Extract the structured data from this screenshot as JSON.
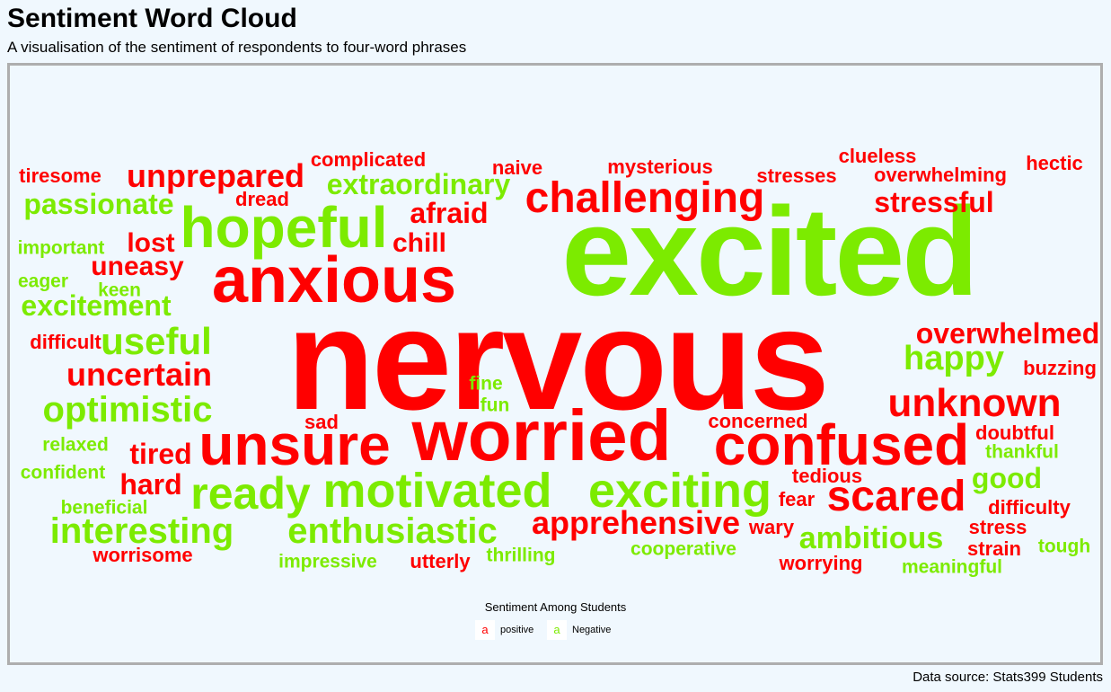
{
  "title": "Sentiment Word Cloud",
  "subtitle": "A visualisation of the sentiment of respondents to four-word phrases",
  "caption": "Data source: Stats399 Students",
  "legend": {
    "title": "Sentiment Among Students",
    "key_glyph": "a",
    "items": [
      {
        "label": "positive",
        "color": "#FF0000"
      },
      {
        "label": "Negative",
        "color": "#7CEB00"
      }
    ]
  },
  "colors": {
    "red": "#FF0000",
    "green": "#7CEB00"
  },
  "chart_data": {
    "type": "wordcloud",
    "words": [
      {
        "text": "nervous",
        "group": "positive",
        "weight": 100
      },
      {
        "text": "excited",
        "group": "Negative",
        "weight": 90
      },
      {
        "text": "worried",
        "group": "positive",
        "weight": 52
      },
      {
        "text": "anxious",
        "group": "positive",
        "weight": 46
      },
      {
        "text": "unsure",
        "group": "positive",
        "weight": 42
      },
      {
        "text": "confused",
        "group": "positive",
        "weight": 42
      },
      {
        "text": "hopeful",
        "group": "Negative",
        "weight": 42
      },
      {
        "text": "motivated",
        "group": "Negative",
        "weight": 36
      },
      {
        "text": "ready",
        "group": "Negative",
        "weight": 36
      },
      {
        "text": "exciting",
        "group": "Negative",
        "weight": 36
      },
      {
        "text": "challenging",
        "group": "positive",
        "weight": 32
      },
      {
        "text": "scared",
        "group": "positive",
        "weight": 32
      },
      {
        "text": "unknown",
        "group": "positive",
        "weight": 30
      },
      {
        "text": "enthusiastic",
        "group": "Negative",
        "weight": 28
      },
      {
        "text": "interesting",
        "group": "Negative",
        "weight": 28
      },
      {
        "text": "useful",
        "group": "Negative",
        "weight": 28
      },
      {
        "text": "optimistic",
        "group": "Negative",
        "weight": 27
      },
      {
        "text": "uncertain",
        "group": "positive",
        "weight": 25
      },
      {
        "text": "unprepared",
        "group": "positive",
        "weight": 25
      },
      {
        "text": "apprehensive",
        "group": "positive",
        "weight": 24
      },
      {
        "text": "happy",
        "group": "Negative",
        "weight": 24
      },
      {
        "text": "ambitious",
        "group": "Negative",
        "weight": 24
      },
      {
        "text": "overwhelmed",
        "group": "positive",
        "weight": 23
      },
      {
        "text": "stressful",
        "group": "positive",
        "weight": 23
      },
      {
        "text": "extraordinary",
        "group": "Negative",
        "weight": 23
      },
      {
        "text": "passionate",
        "group": "Negative",
        "weight": 23
      },
      {
        "text": "excitement",
        "group": "Negative",
        "weight": 23
      },
      {
        "text": "tired",
        "group": "positive",
        "weight": 23
      },
      {
        "text": "afraid",
        "group": "positive",
        "weight": 23
      },
      {
        "text": "good",
        "group": "Negative",
        "weight": 23
      },
      {
        "text": "lost",
        "group": "positive",
        "weight": 22
      },
      {
        "text": "hard",
        "group": "positive",
        "weight": 22
      },
      {
        "text": "chill",
        "group": "positive",
        "weight": 22
      },
      {
        "text": "uneasy",
        "group": "positive",
        "weight": 22
      },
      {
        "text": "complicated",
        "group": "positive",
        "weight": 17
      },
      {
        "text": "mysterious",
        "group": "positive",
        "weight": 17
      },
      {
        "text": "clueless",
        "group": "positive",
        "weight": 17
      },
      {
        "text": "overwhelming",
        "group": "positive",
        "weight": 17
      },
      {
        "text": "hectic",
        "group": "positive",
        "weight": 17
      },
      {
        "text": "tiresome",
        "group": "positive",
        "weight": 17
      },
      {
        "text": "naive",
        "group": "positive",
        "weight": 17
      },
      {
        "text": "stresses",
        "group": "positive",
        "weight": 17
      },
      {
        "text": "dread",
        "group": "positive",
        "weight": 17
      },
      {
        "text": "difficult",
        "group": "positive",
        "weight": 17
      },
      {
        "text": "buzzing",
        "group": "positive",
        "weight": 17
      },
      {
        "text": "concerned",
        "group": "positive",
        "weight": 17
      },
      {
        "text": "doubtful",
        "group": "positive",
        "weight": 17
      },
      {
        "text": "tedious",
        "group": "positive",
        "weight": 17
      },
      {
        "text": "difficulty",
        "group": "positive",
        "weight": 17
      },
      {
        "text": "stress",
        "group": "positive",
        "weight": 17
      },
      {
        "text": "strain",
        "group": "positive",
        "weight": 17
      },
      {
        "text": "worrying",
        "group": "positive",
        "weight": 17
      },
      {
        "text": "utterly",
        "group": "positive",
        "weight": 17
      },
      {
        "text": "worrisome",
        "group": "positive",
        "weight": 17
      },
      {
        "text": "wary",
        "group": "positive",
        "weight": 17
      },
      {
        "text": "fear",
        "group": "positive",
        "weight": 17
      },
      {
        "text": "sad",
        "group": "positive",
        "weight": 17
      },
      {
        "text": "important",
        "group": "Negative",
        "weight": 17
      },
      {
        "text": "eager",
        "group": "Negative",
        "weight": 17
      },
      {
        "text": "keen",
        "group": "Negative",
        "weight": 17
      },
      {
        "text": "fine",
        "group": "Negative",
        "weight": 17
      },
      {
        "text": "fun",
        "group": "Negative",
        "weight": 17
      },
      {
        "text": "relaxed",
        "group": "Negative",
        "weight": 17
      },
      {
        "text": "confident",
        "group": "Negative",
        "weight": 17
      },
      {
        "text": "beneficial",
        "group": "Negative",
        "weight": 17
      },
      {
        "text": "thankful",
        "group": "Negative",
        "weight": 17
      },
      {
        "text": "impressive",
        "group": "Negative",
        "weight": 17
      },
      {
        "text": "thrilling",
        "group": "Negative",
        "weight": 17
      },
      {
        "text": "cooperative",
        "group": "Negative",
        "weight": 17
      },
      {
        "text": "meaningful",
        "group": "Negative",
        "weight": 17
      },
      {
        "text": "tough",
        "group": "Negative",
        "weight": 17
      }
    ]
  }
}
